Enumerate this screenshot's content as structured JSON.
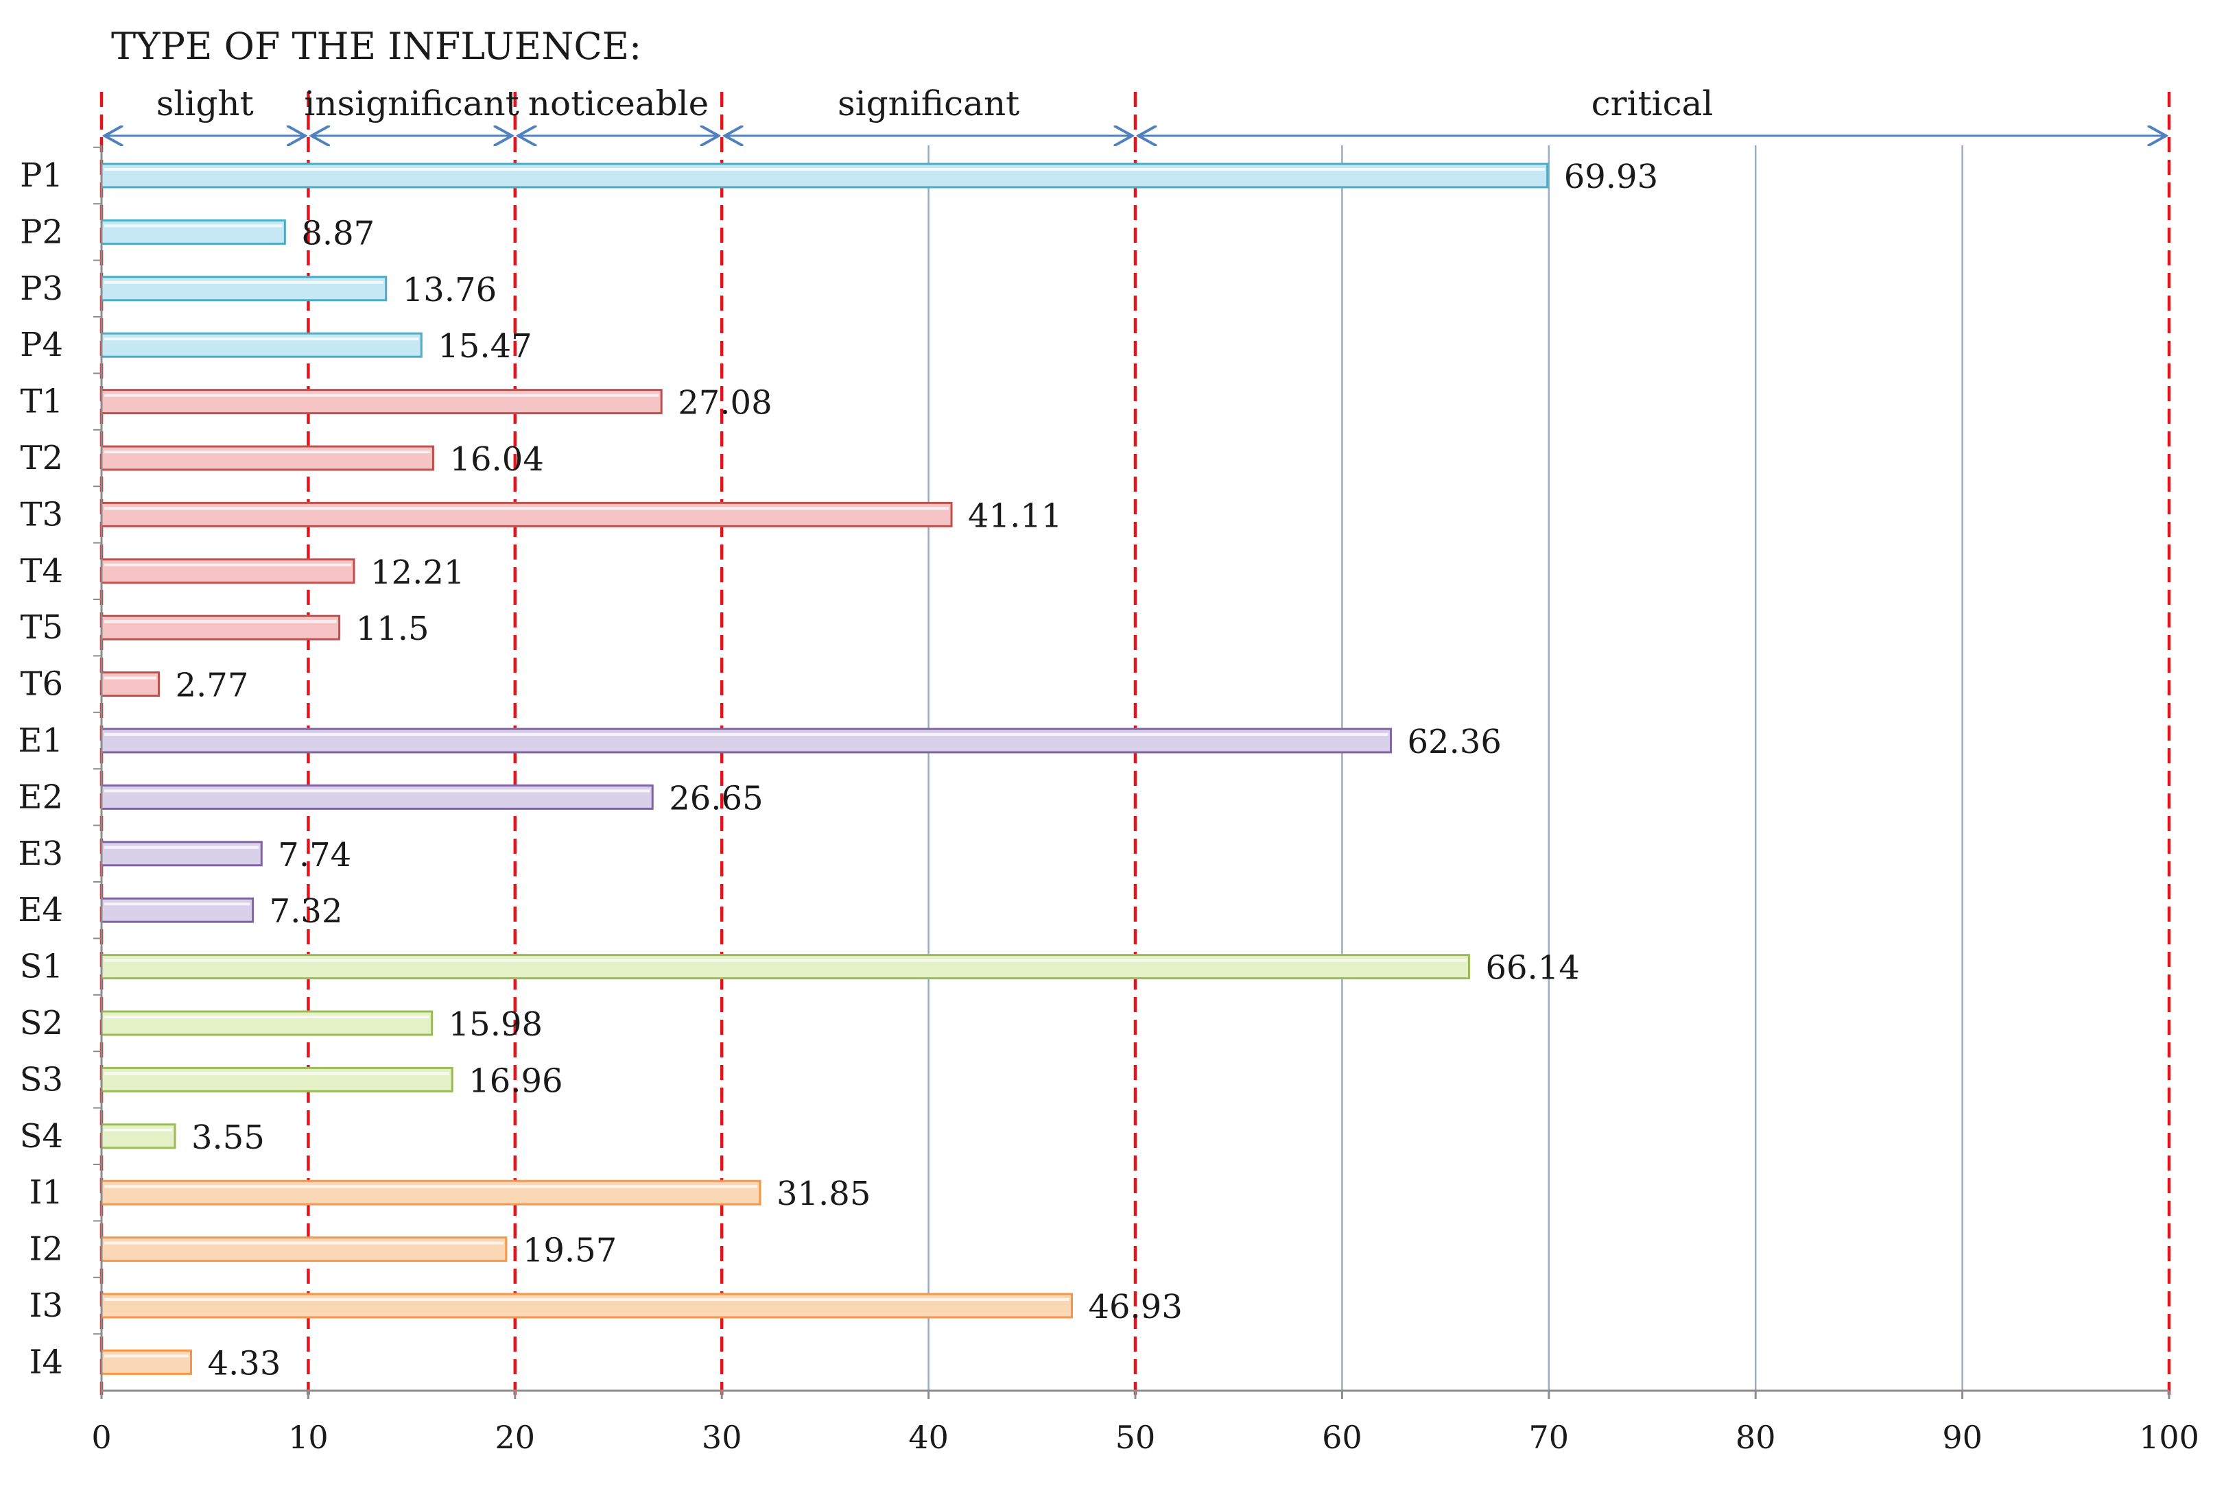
{
  "chart_data": {
    "type": "bar",
    "orientation": "horizontal",
    "title": "TYPE OF THE INFLUENCE:",
    "xlabel": "",
    "ylabel": "",
    "xlim": [
      0,
      100
    ],
    "x_ticks": [
      "0",
      "10",
      "20",
      "30",
      "40",
      "50",
      "60",
      "70",
      "80",
      "90",
      "100"
    ],
    "grid": true,
    "categories": [
      "P1",
      "P2",
      "P3",
      "P4",
      "T1",
      "T2",
      "T3",
      "T4",
      "T5",
      "T6",
      "E1",
      "E2",
      "E3",
      "E4",
      "S1",
      "S2",
      "S3",
      "S4",
      "I1",
      "I2",
      "I3",
      "I4"
    ],
    "values": [
      69.93,
      8.87,
      13.76,
      15.47,
      27.08,
      16.04,
      41.11,
      12.21,
      11.5,
      2.77,
      62.36,
      26.65,
      7.74,
      7.32,
      66.14,
      15.98,
      16.96,
      3.55,
      31.85,
      19.57,
      46.93,
      4.33
    ],
    "value_labels": [
      "69.93",
      "8.87",
      "13.76",
      "15.47",
      "27.08",
      "16.04",
      "41.11",
      "12.21",
      "11.5",
      "2.77",
      "62.36",
      "26.65",
      "7.74",
      "7.32",
      "66.14",
      "15.98",
      "16.96",
      "3.55",
      "31.85",
      "19.57",
      "46.93",
      "4.33"
    ],
    "groups": [
      {
        "prefix": "P",
        "fill": "#c6e8f4",
        "stroke": "#4bacc6"
      },
      {
        "prefix": "T",
        "fill": "#f6c4c4",
        "stroke": "#c0504d"
      },
      {
        "prefix": "E",
        "fill": "#d9d0ea",
        "stroke": "#8064a2"
      },
      {
        "prefix": "S",
        "fill": "#e4f0c6",
        "stroke": "#9bbb59"
      },
      {
        "prefix": "I",
        "fill": "#fad7b5",
        "stroke": "#f79646"
      }
    ],
    "zones": [
      {
        "label": "slight",
        "from": 0,
        "to": 10
      },
      {
        "label": "insignificant",
        "from": 10,
        "to": 20
      },
      {
        "label": "noticeable",
        "from": 20,
        "to": 30
      },
      {
        "label": "significant",
        "from": 30,
        "to": 50
      },
      {
        "label": "critical",
        "from": 50,
        "to": 100
      }
    ],
    "threshold_lines": [
      0,
      10,
      20,
      30,
      50,
      100
    ],
    "colors": {
      "grid": "#9aabc4",
      "threshold": "#e3141b",
      "arrow": "#4f81bd",
      "axis": "#8c8c8c"
    }
  }
}
